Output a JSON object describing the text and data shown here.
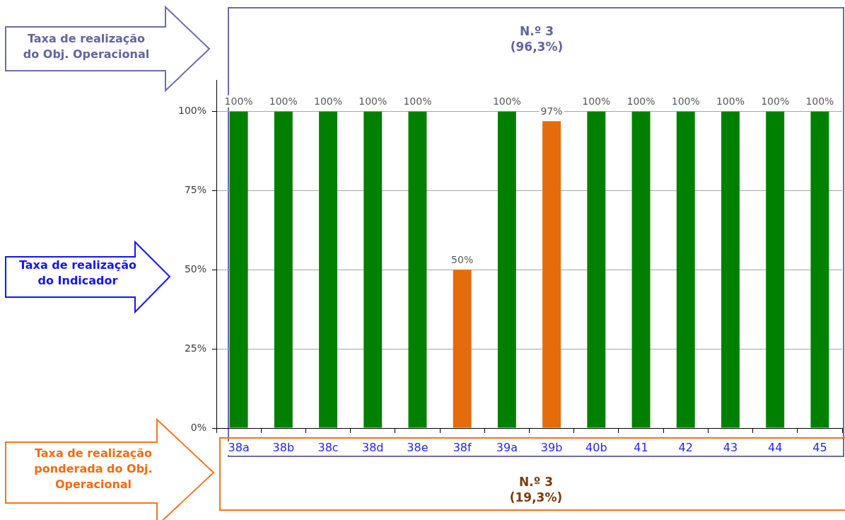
{
  "chart_data": {
    "type": "bar",
    "categories": [
      "38a",
      "38b",
      "38c",
      "38d",
      "38e",
      "38f",
      "39a",
      "39b",
      "40b",
      "41",
      "42",
      "43",
      "44",
      "45"
    ],
    "values": [
      100,
      100,
      100,
      100,
      100,
      50,
      100,
      97,
      100,
      100,
      100,
      100,
      100,
      100
    ],
    "colors": [
      "#008000",
      "#008000",
      "#008000",
      "#008000",
      "#008000",
      "#e46c0a",
      "#008000",
      "#e46c0a",
      "#008000",
      "#008000",
      "#008000",
      "#008000",
      "#008000",
      "#008000"
    ],
    "value_labels": [
      "100%",
      "100%",
      "100%",
      "100%",
      "100%",
      "50%",
      "100%",
      "97%",
      "100%",
      "100%",
      "100%",
      "100%",
      "100%",
      "100%"
    ],
    "ylim": [
      0,
      110
    ],
    "yticks": [
      {
        "value": 0,
        "label": "0%"
      },
      {
        "value": 25,
        "label": "25%"
      },
      {
        "value": 50,
        "label": "50%"
      },
      {
        "value": 75,
        "label": "75%"
      },
      {
        "value": 100,
        "label": "100%"
      }
    ],
    "grid": "y",
    "annotations": [
      "Taxa de realização\ndo Obj. Operacional",
      "N.º 3\n(96,3%)",
      "Taxa de realização\ndo Indicador",
      "Taxa de realização\nponderada do Obj.\nOperacional",
      "N.º 3\n(19,3%)"
    ]
  }
}
